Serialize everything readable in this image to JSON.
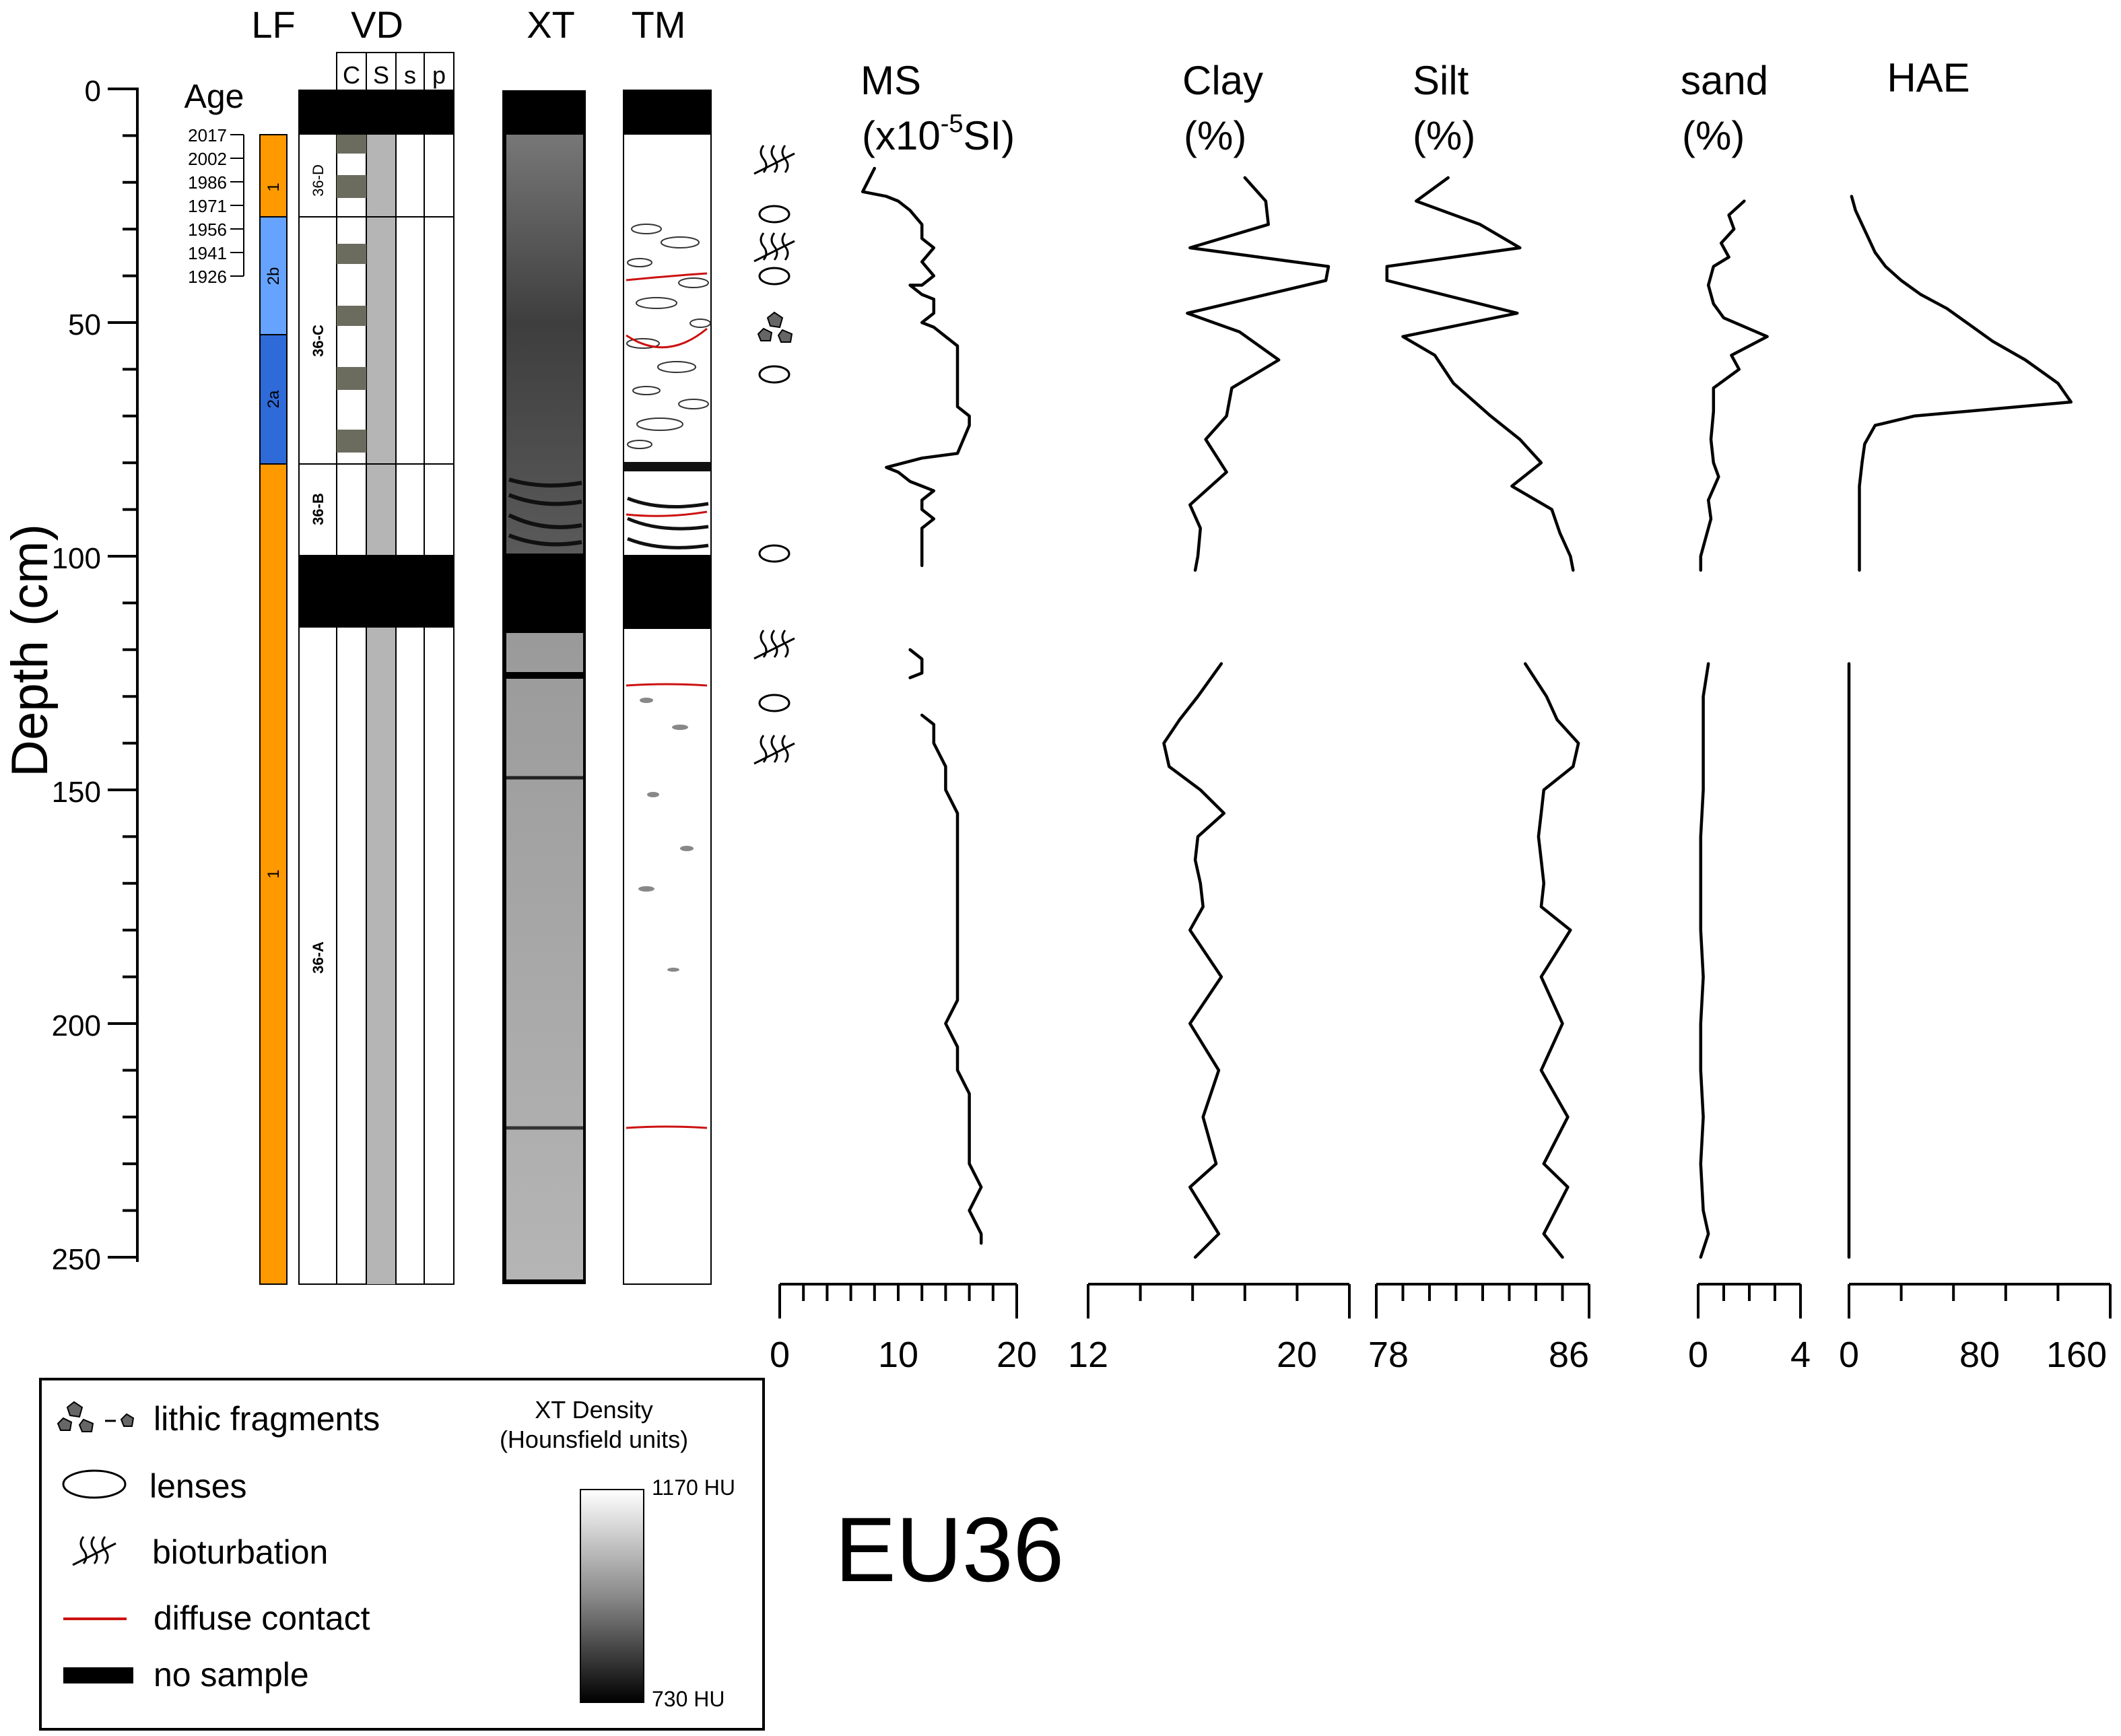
{
  "figure": {
    "label": "EU36"
  },
  "depth_axis": {
    "label": "Depth (cm)",
    "ticks": [
      "0",
      "50",
      "100",
      "150",
      "200",
      "250"
    ]
  },
  "columns": {
    "lf": "LF",
    "vd": "VD",
    "xt": "XT",
    "tm": "TM",
    "vd_subcols": [
      "C",
      "S",
      "s",
      "p"
    ]
  },
  "age": {
    "label": "Age",
    "years": [
      "2017",
      "2002",
      "1986",
      "1971",
      "1956",
      "1941",
      "1926"
    ]
  },
  "lf_units": [
    "1",
    "2b",
    "2a",
    "1"
  ],
  "vd_units": [
    "36-D",
    "36-C",
    "36-B",
    "36-A"
  ],
  "panels": {
    "ms": {
      "title1": "MS",
      "title2": "(x10",
      "sup": "-5",
      "title3": "SI)",
      "ticks": [
        "0",
        "10",
        "20"
      ]
    },
    "clay": {
      "title1": "Clay",
      "title2": "(%)",
      "ticks": [
        "12",
        "20"
      ]
    },
    "silt": {
      "title1": "Silt",
      "title2": "(%)",
      "ticks": [
        "78",
        "86"
      ]
    },
    "sand": {
      "title1": "sand",
      "title2": "(%)",
      "ticks": [
        "0",
        "4"
      ]
    },
    "hae": {
      "title1": "HAE",
      "ticks": [
        "0",
        "80",
        "160"
      ]
    }
  },
  "legend": {
    "lithic": "lithic fragments",
    "lenses": "lenses",
    "bioturbation": "bioturbation",
    "diffuse": "diffuse contact",
    "nosample": "no sample",
    "xt_title1": "XT Density",
    "xt_title2": "(Hounsfield units)",
    "xt_max": "1170 HU",
    "xt_min": "730 HU"
  },
  "colors": {
    "lf_unit1": "#ff9900",
    "lf_unit2b": "#66a3ff",
    "lf_unit2a": "#2e6ad8",
    "diffuse_contact": "#cc1111",
    "vd_sand_band": "#b5b5b5",
    "vd_silt_blocks": "#6b6b5e"
  },
  "chart_data": [
    {
      "type": "line",
      "name": "MS",
      "ylabel": "Depth (cm)",
      "ylim": [
        0,
        250
      ],
      "xlim": [
        0,
        20
      ],
      "segments": [
        [
          [
            8,
            17
          ],
          [
            7,
            22
          ],
          [
            9,
            23
          ],
          [
            10,
            24
          ],
          [
            11,
            26
          ],
          [
            12,
            29
          ],
          [
            12,
            32
          ],
          [
            13,
            34
          ],
          [
            12,
            37
          ],
          [
            13,
            40
          ],
          [
            12,
            42
          ],
          [
            11,
            42
          ],
          [
            12,
            44
          ],
          [
            13,
            45
          ],
          [
            13,
            48
          ],
          [
            12,
            50
          ],
          [
            13,
            51
          ],
          [
            14,
            53
          ],
          [
            15,
            55
          ],
          [
            15,
            60
          ],
          [
            15,
            64
          ],
          [
            15,
            68
          ],
          [
            16,
            70
          ],
          [
            16,
            72
          ],
          [
            15,
            78
          ],
          [
            12,
            79
          ],
          [
            9,
            81
          ],
          [
            10,
            82
          ],
          [
            11,
            84
          ],
          [
            12,
            85
          ],
          [
            13,
            86
          ],
          [
            12,
            88
          ],
          [
            12,
            90
          ],
          [
            13,
            92
          ],
          [
            12,
            94
          ],
          [
            12,
            97
          ],
          [
            12,
            99
          ],
          [
            12,
            102
          ]
        ],
        [
          [
            11,
            120
          ],
          [
            12,
            122
          ],
          [
            12,
            125
          ],
          [
            11,
            126
          ]
        ],
        [
          [
            12,
            134
          ],
          [
            13,
            136
          ],
          [
            13,
            140
          ],
          [
            14,
            145
          ],
          [
            14,
            150
          ],
          [
            15,
            155
          ],
          [
            15,
            160
          ],
          [
            15,
            165
          ],
          [
            15,
            170
          ],
          [
            15,
            175
          ],
          [
            15,
            180
          ],
          [
            15,
            185
          ],
          [
            15,
            190
          ],
          [
            15,
            195
          ],
          [
            14,
            200
          ],
          [
            15,
            205
          ],
          [
            15,
            210
          ],
          [
            16,
            215
          ],
          [
            16,
            220
          ],
          [
            16,
            225
          ],
          [
            16,
            230
          ],
          [
            17,
            235
          ],
          [
            16,
            240
          ],
          [
            17,
            245
          ],
          [
            17,
            247
          ]
        ]
      ]
    },
    {
      "type": "line",
      "name": "Clay",
      "xlim": [
        12,
        22
      ],
      "segments": [
        [
          [
            18.0,
            19
          ],
          [
            18.8,
            24
          ],
          [
            18.9,
            29
          ],
          [
            15.9,
            34
          ],
          [
            21.2,
            38
          ],
          [
            21.1,
            41
          ],
          [
            15.8,
            48
          ],
          [
            17.8,
            52
          ],
          [
            19.3,
            58
          ],
          [
            17.5,
            64
          ],
          [
            17.3,
            70
          ],
          [
            16.5,
            75
          ],
          [
            17.3,
            82
          ],
          [
            15.9,
            89
          ],
          [
            16.3,
            94
          ],
          [
            16.2,
            100
          ],
          [
            16.1,
            103
          ]
        ],
        [
          [
            17.1,
            123
          ],
          [
            16.2,
            130
          ],
          [
            15.5,
            135
          ],
          [
            14.9,
            140
          ],
          [
            15.1,
            145
          ],
          [
            16.3,
            150
          ],
          [
            17.2,
            155
          ],
          [
            16.2,
            160
          ],
          [
            16.1,
            165
          ],
          [
            16.3,
            170
          ],
          [
            16.4,
            175
          ],
          [
            15.9,
            180
          ],
          [
            17.1,
            190
          ],
          [
            15.9,
            200
          ],
          [
            17.0,
            210
          ],
          [
            16.4,
            220
          ],
          [
            16.9,
            230
          ],
          [
            15.9,
            235
          ],
          [
            17.0,
            245
          ],
          [
            16.1,
            250
          ]
        ]
      ]
    },
    {
      "type": "line",
      "name": "Silt",
      "xlim": [
        78,
        86
      ],
      "segments": [
        [
          [
            80.7,
            19
          ],
          [
            79.5,
            24
          ],
          [
            81.9,
            29
          ],
          [
            83.4,
            34
          ],
          [
            78.4,
            38
          ],
          [
            78.4,
            41
          ],
          [
            83.3,
            48
          ],
          [
            79.0,
            53
          ],
          [
            80.2,
            57
          ],
          [
            80.9,
            63
          ],
          [
            82.3,
            70
          ],
          [
            83.4,
            75
          ],
          [
            84.2,
            80
          ],
          [
            83.1,
            85
          ],
          [
            84.6,
            90
          ],
          [
            84.9,
            95
          ],
          [
            85.3,
            100
          ],
          [
            85.4,
            103
          ]
        ],
        [
          [
            83.6,
            123
          ],
          [
            84.4,
            130
          ],
          [
            84.8,
            135
          ],
          [
            85.6,
            140
          ],
          [
            85.4,
            145
          ],
          [
            84.3,
            150
          ],
          [
            84.2,
            155
          ],
          [
            84.1,
            160
          ],
          [
            84.2,
            165
          ],
          [
            84.3,
            170
          ],
          [
            84.2,
            175
          ],
          [
            85.3,
            180
          ],
          [
            84.2,
            190
          ],
          [
            85.0,
            200
          ],
          [
            84.2,
            210
          ],
          [
            85.2,
            220
          ],
          [
            84.3,
            230
          ],
          [
            85.2,
            235
          ],
          [
            84.3,
            245
          ],
          [
            85.0,
            250
          ]
        ]
      ]
    },
    {
      "type": "line",
      "name": "sand",
      "xlim": [
        0,
        4
      ],
      "segments": [
        [
          [
            1.8,
            24
          ],
          [
            1.2,
            27
          ],
          [
            1.4,
            30
          ],
          [
            0.9,
            33
          ],
          [
            1.2,
            36
          ],
          [
            0.6,
            38
          ],
          [
            0.4,
            42
          ],
          [
            0.6,
            46
          ],
          [
            1.0,
            49
          ],
          [
            2.7,
            53
          ],
          [
            1.3,
            57
          ],
          [
            1.6,
            60
          ],
          [
            0.6,
            64
          ],
          [
            0.6,
            69
          ],
          [
            0.5,
            75
          ],
          [
            0.6,
            80
          ],
          [
            0.8,
            83
          ],
          [
            0.4,
            88
          ],
          [
            0.5,
            92
          ],
          [
            0.3,
            96
          ],
          [
            0.1,
            100
          ],
          [
            0.1,
            103
          ]
        ],
        [
          [
            0.4,
            123
          ],
          [
            0.2,
            130
          ],
          [
            0.2,
            140
          ],
          [
            0.2,
            150
          ],
          [
            0.1,
            160
          ],
          [
            0.1,
            170
          ],
          [
            0.1,
            180
          ],
          [
            0.2,
            190
          ],
          [
            0.1,
            200
          ],
          [
            0.1,
            210
          ],
          [
            0.2,
            220
          ],
          [
            0.1,
            230
          ],
          [
            0.2,
            240
          ],
          [
            0.4,
            245
          ],
          [
            0.1,
            250
          ]
        ]
      ]
    },
    {
      "type": "line",
      "name": "HAE",
      "xlim": [
        0,
        200
      ],
      "segments": [
        [
          [
            2,
            23
          ],
          [
            5,
            26
          ],
          [
            10,
            29
          ],
          [
            15,
            32
          ],
          [
            20,
            35
          ],
          [
            28,
            38
          ],
          [
            40,
            41
          ],
          [
            55,
            44
          ],
          [
            75,
            47
          ],
          [
            90,
            50
          ],
          [
            110,
            54
          ],
          [
            135,
            58
          ],
          [
            160,
            63
          ],
          [
            170,
            67
          ],
          [
            50,
            70
          ],
          [
            20,
            72
          ],
          [
            12,
            76
          ],
          [
            10,
            80
          ],
          [
            8,
            85
          ],
          [
            8,
            95
          ],
          [
            8,
            103
          ]
        ],
        [
          [
            0,
            123
          ],
          [
            0,
            250
          ]
        ]
      ]
    }
  ]
}
